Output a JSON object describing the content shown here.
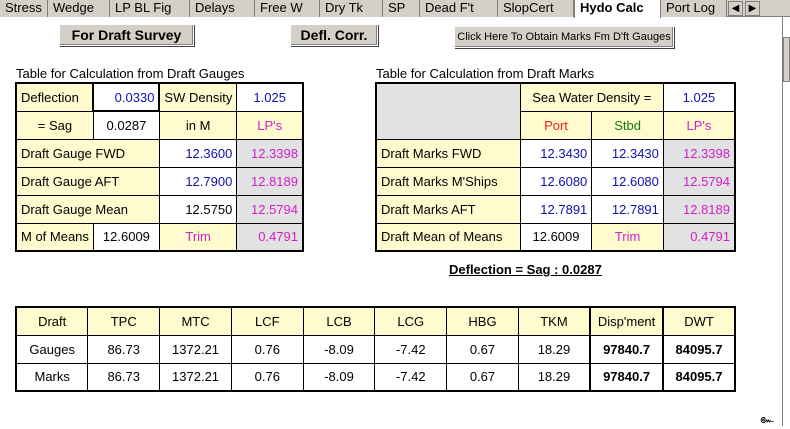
{
  "tabs": [
    {
      "label": "Stress",
      "active": false
    },
    {
      "label": "Wedge",
      "active": false
    },
    {
      "label": "LP BL Fig",
      "active": false
    },
    {
      "label": "Delays",
      "active": false
    },
    {
      "label": "Free W",
      "active": false
    },
    {
      "label": "Dry Tk",
      "active": false
    },
    {
      "label": "SP",
      "active": false
    },
    {
      "label": "Dead F't",
      "active": false
    },
    {
      "label": "SlopCert",
      "active": false
    },
    {
      "label": "Hydo Calc",
      "active": true
    },
    {
      "label": "Port Log",
      "active": false
    }
  ],
  "toolbar": {
    "draft_survey": "For Draft Survey",
    "defl_corr": "Defl. Corr.",
    "obtain_marks": "Click Here To Obtain Marks Fm D'ft Gauges"
  },
  "gauges": {
    "title": "Table for Calculation from Draft Gauges",
    "deflection_label": "Deflection",
    "deflection_value": "0.0330",
    "sw_density_label": "SW Density",
    "sw_density_value": "1.025",
    "sag_label": "= Sag",
    "sag_value": "0.0287",
    "in_m_label": "in M",
    "lps_label": "LP's",
    "rows": [
      {
        "label": "Draft Gauge   FWD",
        "value": "12.3600",
        "lp": "12.3398"
      },
      {
        "label": "Draft Gauge   AFT",
        "value": "12.7900",
        "lp": "12.8189"
      },
      {
        "label": "Draft Gauge   Mean",
        "value": "12.5750",
        "lp": "12.5794"
      }
    ],
    "mom_label": "M of Means",
    "mom_value": "12.6009",
    "trim_label": "Trim",
    "trim_value": "0.4791"
  },
  "marks": {
    "title": "Table for Calculation from Draft Marks",
    "sw_density_label": "Sea Water Density  =",
    "sw_density_value": "1.025",
    "port_label": "Port",
    "stbd_label": "Stbd",
    "lps_label": "LP's",
    "rows": [
      {
        "label": "Draft Marks  FWD",
        "port": "12.3430",
        "stbd": "12.3430",
        "lp": "12.3398"
      },
      {
        "label": "Draft Marks  M'Ships",
        "port": "12.6080",
        "stbd": "12.6080",
        "lp": "12.5794"
      },
      {
        "label": "Draft Marks  AFT",
        "port": "12.7891",
        "stbd": "12.7891",
        "lp": "12.8189"
      }
    ],
    "mean_label": "Draft Mean of Means",
    "mean_value": "12.6009",
    "trim_label": "Trim",
    "trim_value": "0.4791"
  },
  "deflection_summary": "Deflection = Sag  : 0.0287",
  "hydro": {
    "headers": [
      "Draft",
      "TPC",
      "MTC",
      "LCF",
      "LCB",
      "LCG",
      "HBG",
      "TKM",
      "Disp'ment",
      "DWT"
    ],
    "rows": [
      [
        "Gauges",
        "86.73",
        "1372.21",
        "0.76",
        "-8.09",
        "-7.42",
        "0.67",
        "18.29",
        "97840.7",
        "84095.7"
      ],
      [
        "Marks",
        "86.73",
        "1372.21",
        "0.76",
        "-8.09",
        "-7.42",
        "0.67",
        "18.29",
        "97840.7",
        "84095.7"
      ]
    ]
  },
  "icons": {
    "tab_nav": "tab-scroll-arrow-icon",
    "corner": "sheet-marker-icon"
  },
  "corner_mark": "๛"
}
